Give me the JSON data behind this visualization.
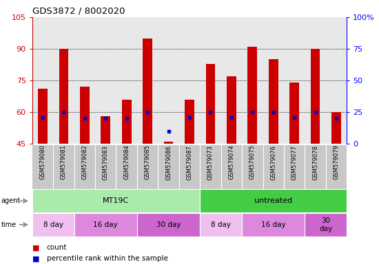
{
  "title": "GDS3872 / 8002020",
  "samples": [
    "GSM579080",
    "GSM579081",
    "GSM579082",
    "GSM579083",
    "GSM579084",
    "GSM579085",
    "GSM579086",
    "GSM579087",
    "GSM579073",
    "GSM579074",
    "GSM579075",
    "GSM579076",
    "GSM579077",
    "GSM579078",
    "GSM579079"
  ],
  "count_values": [
    71,
    90,
    72,
    58,
    66,
    95,
    46,
    66,
    83,
    77,
    91,
    85,
    74,
    90,
    60
  ],
  "percentile_values": [
    21,
    25,
    20,
    20,
    20,
    25,
    10,
    21,
    25,
    21,
    25,
    25,
    21,
    25,
    20
  ],
  "bar_color": "#cc0000",
  "dot_color": "#0000cc",
  "left_ylim": [
    45,
    105
  ],
  "right_ylim": [
    0,
    100
  ],
  "left_yticks": [
    45,
    60,
    75,
    90,
    105
  ],
  "right_yticks": [
    0,
    25,
    50,
    75,
    100
  ],
  "right_yticklabels": [
    "0",
    "25",
    "50",
    "75",
    "100%"
  ],
  "grid_values": [
    60,
    75,
    90
  ],
  "plot_bg": "#e8e8e8",
  "xtick_bg": "#c8c8c8",
  "agent_groups": [
    {
      "text": "MT19C",
      "start": 0,
      "end": 7,
      "color": "#aaeaaa"
    },
    {
      "text": "untreated",
      "start": 8,
      "end": 14,
      "color": "#44cc44"
    }
  ],
  "time_groups": [
    {
      "text": "8 day",
      "start": 0,
      "end": 1,
      "color": "#f0c0f0"
    },
    {
      "text": "16 day",
      "start": 2,
      "end": 4,
      "color": "#dd88dd"
    },
    {
      "text": "30 day",
      "start": 5,
      "end": 7,
      "color": "#cc66cc"
    },
    {
      "text": "8 day",
      "start": 8,
      "end": 9,
      "color": "#f0c0f0"
    },
    {
      "text": "16 day",
      "start": 10,
      "end": 12,
      "color": "#dd88dd"
    },
    {
      "text": "30\nday",
      "start": 13,
      "end": 14,
      "color": "#cc66cc"
    }
  ],
  "legend": [
    {
      "color": "#cc0000",
      "label": "count"
    },
    {
      "color": "#0000cc",
      "label": "percentile rank within the sample"
    }
  ]
}
